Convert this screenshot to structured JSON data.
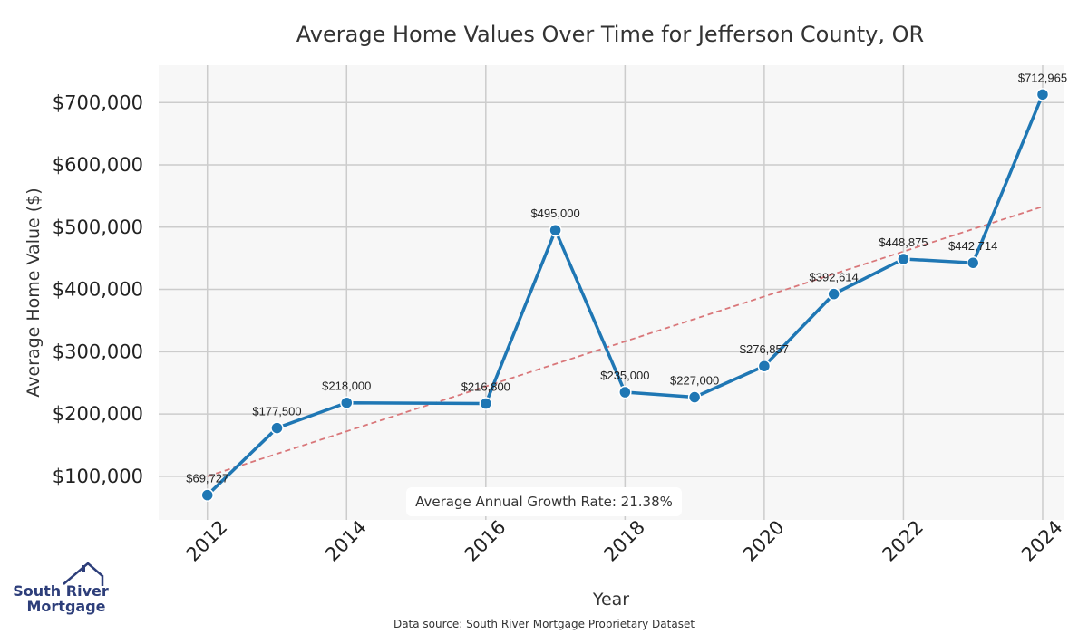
{
  "chart_data": {
    "type": "line",
    "title": "Average Home Values Over Time for Jefferson County, OR",
    "xlabel": "Year",
    "ylabel": "Average Home Value ($)",
    "x": [
      2012,
      2013,
      2014,
      2016,
      2017,
      2018,
      2019,
      2020,
      2021,
      2022,
      2023,
      2024
    ],
    "values": [
      69727,
      177500,
      218000,
      216800,
      495000,
      235000,
      227000,
      276857,
      392614,
      448875,
      442714,
      712965
    ],
    "data_labels": [
      "$69,727",
      "$177,500",
      "$218,000",
      "$216,800",
      "$495,000",
      "$235,000",
      "$227,000",
      "$276,857",
      "$392,614",
      "$448,875",
      "$442,714",
      "$712,965"
    ],
    "trendline": {
      "start": [
        2012,
        100000
      ],
      "end": [
        2024,
        533000
      ]
    },
    "xlim": [
      2011.3,
      2024.3
    ],
    "ylim": [
      30000,
      760000
    ],
    "x_ticks": [
      2012,
      2014,
      2016,
      2018,
      2020,
      2022,
      2024
    ],
    "x_tick_labels": [
      "2012",
      "2014",
      "2016",
      "2018",
      "2020",
      "2022",
      "2024"
    ],
    "y_ticks": [
      100000,
      200000,
      300000,
      400000,
      500000,
      600000,
      700000
    ],
    "y_tick_labels": [
      "$100,000",
      "$200,000",
      "$300,000",
      "$400,000",
      "$500,000",
      "$600,000",
      "$700,000"
    ],
    "grid": true,
    "line_color": "#1f77b4",
    "trend_color": "#d9777a",
    "plot_background": "#f7f7f7",
    "grid_color": "#cccccc"
  },
  "annotation": {
    "growth_rate": "Average Annual Growth Rate: 21.38%"
  },
  "footer": {
    "source": "Data source: South River Mortgage Proprietary Dataset"
  },
  "logo": {
    "line1": "South River",
    "line2": "Mortgage",
    "color": "#2d3e7a"
  }
}
